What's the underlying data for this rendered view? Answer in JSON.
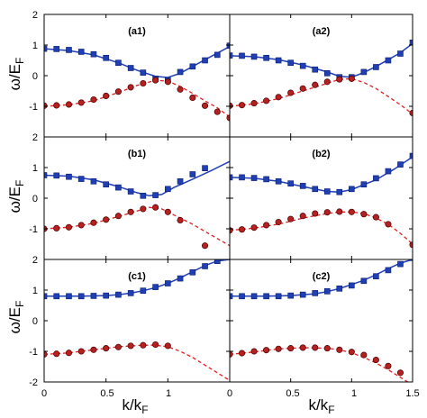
{
  "chart_data": {
    "type": "line",
    "ylabel": {
      "main": "ω/E",
      "sub": "F"
    },
    "xlabel": {
      "main": "k/k",
      "sub": "F"
    },
    "x_range": [
      0,
      1.5
    ],
    "y_ranges": [
      [
        -2,
        2
      ],
      [
        -2,
        2
      ],
      [
        -2,
        2
      ]
    ],
    "x_ticks": [
      "0",
      "0.5",
      "1",
      "0",
      "0.5",
      "1",
      "1.5"
    ],
    "y_ticks": {
      "row1": [
        "2",
        "1",
        "0",
        "-1"
      ],
      "row2": [
        "2",
        "1",
        "0",
        "-1"
      ],
      "row3": [
        "2",
        "1",
        "0",
        "-1",
        "-2"
      ]
    },
    "colors": {
      "upper": "#1f3fb5",
      "lower": "#e02020",
      "marker_lower": "#b52020"
    },
    "panels": [
      {
        "id": "a1",
        "label": "(a1)",
        "upper_fit": {
          "x": [
            0,
            0.2,
            0.4,
            0.6,
            0.75,
            0.9,
            1.0,
            1.1,
            1.2,
            1.3,
            1.5
          ],
          "y": [
            0.88,
            0.82,
            0.68,
            0.42,
            0.18,
            -0.02,
            -0.06,
            0.08,
            0.3,
            0.52,
            0.95
          ]
        },
        "lower_fit": {
          "x": [
            0,
            0.2,
            0.4,
            0.6,
            0.75,
            0.9,
            1.0,
            1.1,
            1.2,
            1.3,
            1.4,
            1.5
          ],
          "y": [
            -1.0,
            -0.95,
            -0.82,
            -0.55,
            -0.32,
            -0.15,
            -0.18,
            -0.35,
            -0.58,
            -0.82,
            -1.05,
            -1.35
          ]
        },
        "upper_pts": {
          "x": [
            0,
            0.1,
            0.2,
            0.3,
            0.4,
            0.5,
            0.6,
            0.7,
            0.8,
            0.9,
            1.0,
            1.1,
            1.2,
            1.3,
            1.4,
            1.5
          ],
          "y": [
            0.88,
            0.87,
            0.84,
            0.78,
            0.7,
            0.58,
            0.42,
            0.25,
            0.1,
            -0.1,
            -0.15,
            0.12,
            0.3,
            0.5,
            0.68,
            0.98
          ]
        },
        "lower_pts": {
          "x": [
            0,
            0.1,
            0.2,
            0.3,
            0.4,
            0.5,
            0.6,
            0.7,
            0.8,
            0.9,
            1.0,
            1.1,
            1.2,
            1.3,
            1.4,
            1.5
          ],
          "y": [
            -0.98,
            -0.97,
            -0.94,
            -0.88,
            -0.78,
            -0.66,
            -0.52,
            -0.38,
            -0.25,
            -0.15,
            -0.2,
            -0.45,
            -0.72,
            -0.98,
            -1.18,
            -1.38
          ]
        }
      },
      {
        "id": "a2",
        "label": "(a2)",
        "upper_fit": {
          "x": [
            0,
            0.2,
            0.4,
            0.6,
            0.8,
            0.9,
            1.0,
            1.1,
            1.2,
            1.3,
            1.4,
            1.5
          ],
          "y": [
            0.65,
            0.62,
            0.52,
            0.35,
            0.12,
            -0.02,
            -0.05,
            0.1,
            0.3,
            0.52,
            0.75,
            1.05
          ]
        },
        "lower_fit": {
          "x": [
            0,
            0.2,
            0.4,
            0.6,
            0.8,
            0.9,
            1.0,
            1.1,
            1.2,
            1.3,
            1.4,
            1.5
          ],
          "y": [
            -1.0,
            -0.92,
            -0.75,
            -0.5,
            -0.25,
            -0.12,
            -0.1,
            -0.22,
            -0.42,
            -0.68,
            -0.95,
            -1.25
          ]
        },
        "upper_pts": {
          "x": [
            0,
            0.1,
            0.2,
            0.3,
            0.4,
            0.5,
            0.6,
            0.7,
            0.8,
            0.9,
            1.0,
            1.1,
            1.2,
            1.3,
            1.4,
            1.5
          ],
          "y": [
            0.66,
            0.65,
            0.62,
            0.58,
            0.5,
            0.42,
            0.32,
            0.2,
            0.08,
            -0.05,
            -0.05,
            0.12,
            0.28,
            0.5,
            0.72,
            1.08
          ]
        },
        "lower_pts": {
          "x": [
            0,
            0.1,
            0.2,
            0.3,
            0.4,
            0.5,
            0.6,
            0.7,
            0.8,
            0.9,
            1.0,
            1.5
          ],
          "y": [
            -0.98,
            -0.96,
            -0.9,
            -0.82,
            -0.7,
            -0.56,
            -0.42,
            -0.3,
            -0.2,
            -0.12,
            -0.1,
            -1.22
          ]
        }
      },
      {
        "id": "b1",
        "label": "(b1)",
        "upper_fit": {
          "x": [
            0,
            0.2,
            0.4,
            0.6,
            0.75,
            0.85,
            0.95,
            1.05,
            1.2,
            1.35,
            1.5
          ],
          "y": [
            0.75,
            0.72,
            0.6,
            0.38,
            0.18,
            0.08,
            0.12,
            0.35,
            0.62,
            0.9,
            1.2
          ]
        },
        "lower_fit": {
          "x": [
            0,
            0.2,
            0.4,
            0.6,
            0.75,
            0.85,
            0.95,
            1.05,
            1.2,
            1.35,
            1.5
          ],
          "y": [
            -1.0,
            -0.95,
            -0.82,
            -0.6,
            -0.42,
            -0.3,
            -0.35,
            -0.55,
            -0.85,
            -1.2,
            -1.55
          ]
        },
        "upper_pts": {
          "x": [
            0,
            0.1,
            0.2,
            0.3,
            0.4,
            0.5,
            0.6,
            0.7,
            0.8,
            0.9,
            1.0,
            1.1,
            1.2,
            1.3
          ],
          "y": [
            0.75,
            0.74,
            0.7,
            0.63,
            0.55,
            0.45,
            0.35,
            0.22,
            0.08,
            0.1,
            0.3,
            0.55,
            0.78,
            0.98
          ]
        },
        "lower_pts": {
          "x": [
            0,
            0.1,
            0.2,
            0.3,
            0.4,
            0.5,
            0.6,
            0.7,
            0.8,
            0.9,
            1.0,
            1.1,
            1.3
          ],
          "y": [
            -1.0,
            -0.98,
            -0.95,
            -0.88,
            -0.8,
            -0.7,
            -0.58,
            -0.45,
            -0.35,
            -0.3,
            -0.45,
            -0.72,
            -1.55
          ]
        }
      },
      {
        "id": "b2",
        "label": "(b2)",
        "upper_fit": {
          "x": [
            0,
            0.2,
            0.4,
            0.6,
            0.8,
            0.9,
            1.0,
            1.2,
            1.35,
            1.5
          ],
          "y": [
            0.68,
            0.65,
            0.55,
            0.38,
            0.22,
            0.2,
            0.28,
            0.6,
            0.95,
            1.35
          ]
        },
        "lower_fit": {
          "x": [
            0,
            0.2,
            0.4,
            0.6,
            0.8,
            0.9,
            1.0,
            1.1,
            1.2,
            1.3,
            1.4,
            1.5
          ],
          "y": [
            -1.05,
            -0.98,
            -0.85,
            -0.65,
            -0.5,
            -0.45,
            -0.45,
            -0.5,
            -0.65,
            -0.85,
            -1.15,
            -1.5
          ]
        },
        "upper_pts": {
          "x": [
            0,
            0.1,
            0.2,
            0.3,
            0.4,
            0.5,
            0.6,
            0.7,
            0.8,
            0.9,
            1.0,
            1.1,
            1.2,
            1.3,
            1.4,
            1.5
          ],
          "y": [
            0.68,
            0.68,
            0.66,
            0.62,
            0.55,
            0.48,
            0.4,
            0.3,
            0.22,
            0.2,
            0.3,
            0.45,
            0.65,
            0.88,
            1.1,
            1.38
          ]
        },
        "lower_pts": {
          "x": [
            0,
            0.1,
            0.2,
            0.3,
            0.4,
            0.5,
            0.6,
            0.7,
            0.8,
            0.9,
            1.0,
            1.1,
            1.2,
            1.3,
            1.5
          ],
          "y": [
            -1.05,
            -1.02,
            -0.96,
            -0.88,
            -0.78,
            -0.68,
            -0.58,
            -0.5,
            -0.46,
            -0.44,
            -0.45,
            -0.52,
            -0.62,
            -0.85,
            -1.52
          ]
        }
      },
      {
        "id": "c1",
        "label": "(c1)",
        "upper_fit": {
          "x": [
            0,
            0.3,
            0.5,
            0.6,
            0.7,
            0.8,
            0.9,
            1.0,
            1.1,
            1.2,
            1.3,
            1.4,
            1.5
          ],
          "y": [
            0.8,
            0.8,
            0.82,
            0.85,
            0.9,
            0.98,
            1.08,
            1.22,
            1.4,
            1.6,
            1.8,
            1.95,
            2.0
          ]
        },
        "lower_fit": {
          "x": [
            0,
            0.2,
            0.4,
            0.6,
            0.8,
            0.9,
            1.0,
            1.1,
            1.2,
            1.3,
            1.4,
            1.5
          ],
          "y": [
            -1.1,
            -1.05,
            -0.95,
            -0.85,
            -0.8,
            -0.8,
            -0.85,
            -1.0,
            -1.2,
            -1.45,
            -1.7,
            -1.95
          ]
        },
        "upper_pts": {
          "x": [
            0,
            0.1,
            0.2,
            0.3,
            0.4,
            0.5,
            0.6,
            0.7,
            0.8,
            0.9,
            1.0,
            1.1,
            1.2,
            1.3,
            1.4
          ],
          "y": [
            0.8,
            0.8,
            0.8,
            0.8,
            0.81,
            0.82,
            0.85,
            0.9,
            0.98,
            1.1,
            1.22,
            1.38,
            1.58,
            1.78,
            1.95
          ]
        },
        "lower_pts": {
          "x": [
            0,
            0.1,
            0.2,
            0.3,
            0.4,
            0.5,
            0.6,
            0.7,
            0.8,
            0.9,
            1.0
          ],
          "y": [
            -1.1,
            -1.08,
            -1.05,
            -1.0,
            -0.95,
            -0.9,
            -0.86,
            -0.82,
            -0.8,
            -0.78,
            -0.82
          ]
        }
      },
      {
        "id": "c2",
        "label": "(c2)",
        "upper_fit": {
          "x": [
            0,
            0.3,
            0.5,
            0.7,
            0.8,
            0.9,
            1.0,
            1.1,
            1.2,
            1.3,
            1.4,
            1.5
          ],
          "y": [
            0.8,
            0.8,
            0.82,
            0.88,
            0.95,
            1.05,
            1.18,
            1.32,
            1.5,
            1.7,
            1.88,
            2.0
          ]
        },
        "lower_fit": {
          "x": [
            0,
            0.2,
            0.4,
            0.6,
            0.8,
            0.9,
            1.0,
            1.1,
            1.2,
            1.3,
            1.4,
            1.5
          ],
          "y": [
            -1.1,
            -1.02,
            -0.92,
            -0.88,
            -0.9,
            -0.95,
            -1.05,
            -1.2,
            -1.38,
            -1.6,
            -1.85,
            -2.1
          ]
        },
        "upper_pts": {
          "x": [
            0,
            0.1,
            0.2,
            0.3,
            0.4,
            0.5,
            0.6,
            0.7,
            0.8,
            0.9,
            1.0,
            1.1,
            1.2,
            1.3,
            1.4,
            1.5
          ],
          "y": [
            0.8,
            0.8,
            0.8,
            0.8,
            0.8,
            0.82,
            0.85,
            0.9,
            0.96,
            1.05,
            1.15,
            1.3,
            1.45,
            1.65,
            1.85,
            2.05
          ]
        },
        "lower_pts": {
          "x": [
            0,
            0.1,
            0.2,
            0.3,
            0.4,
            0.5,
            0.6,
            0.7,
            0.8,
            0.9,
            1.0,
            1.1,
            1.2,
            1.3,
            1.4
          ],
          "y": [
            -1.1,
            -1.06,
            -1.0,
            -0.96,
            -0.92,
            -0.9,
            -0.88,
            -0.88,
            -0.9,
            -0.95,
            -1.02,
            -1.12,
            -1.28,
            -1.48,
            -1.7
          ]
        }
      }
    ]
  }
}
